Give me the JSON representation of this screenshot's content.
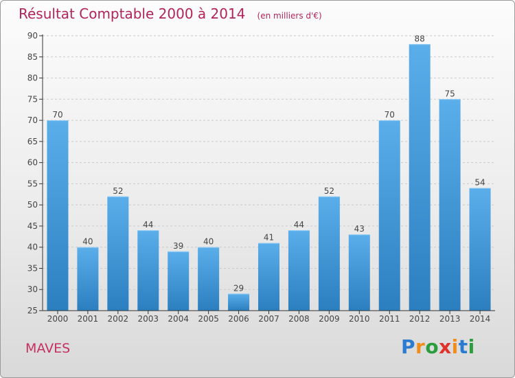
{
  "title": "Résultat Comptable 2000 à 2014",
  "subtitle": "(en milliers d'€)",
  "commune": "MAVES",
  "logo": {
    "text": "Proxiti",
    "letter_colors": [
      "#2b7bd1",
      "#f28c1a",
      "#2a9d3e",
      "#e0312b",
      "#f28c1a",
      "#2b7bd1",
      "#2a9d3e"
    ]
  },
  "colors": {
    "bar_top": "#5aaeea",
    "bar_bottom": "#2b7fbf",
    "title": "#b0245a",
    "axis": "#333333"
  },
  "chart_data": {
    "type": "bar",
    "categories": [
      "2000",
      "2001",
      "2002",
      "2003",
      "2004",
      "2005",
      "2006",
      "2007",
      "2008",
      "2009",
      "2010",
      "2011",
      "2012",
      "2013",
      "2014"
    ],
    "values": [
      70,
      40,
      52,
      44,
      39,
      40,
      29,
      41,
      44,
      52,
      43,
      70,
      88,
      75,
      54
    ],
    "ylim": [
      25,
      90
    ],
    "yticks": [
      25,
      30,
      35,
      40,
      45,
      50,
      55,
      60,
      65,
      70,
      75,
      80,
      85,
      90
    ],
    "grid": true,
    "data_labels": true
  }
}
